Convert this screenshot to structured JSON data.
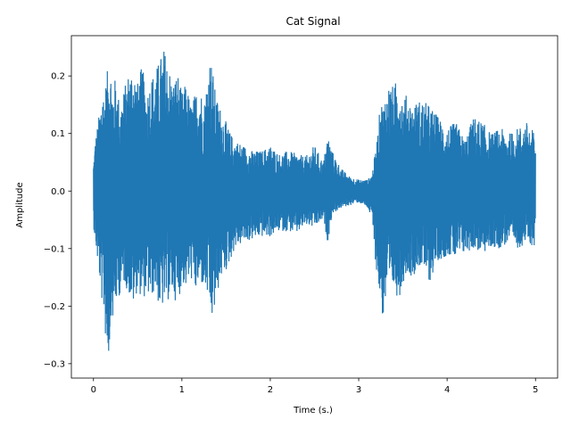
{
  "chart_data": {
    "type": "line",
    "title": "Cat Signal",
    "xlabel": "Time (s.)",
    "ylabel": "Amplitude",
    "xlim": [
      -0.25,
      5.25
    ],
    "ylim": [
      -0.325,
      0.27
    ],
    "x_ticks": [
      0,
      1,
      2,
      3,
      4,
      5
    ],
    "x_tick_labels": [
      "0",
      "1",
      "2",
      "3",
      "4",
      "5"
    ],
    "y_ticks": [
      -0.3,
      -0.2,
      -0.1,
      0.0,
      0.1,
      0.2
    ],
    "y_tick_labels": [
      "−0.3",
      "−0.2",
      "−0.1",
      "0.0",
      "0.1",
      "0.2"
    ],
    "grid": false,
    "series": [
      {
        "color": "#1f77b4",
        "envelope": {
          "t": [
            0.0,
            0.02,
            0.05,
            0.08,
            0.1,
            0.12,
            0.15,
            0.18,
            0.2,
            0.22,
            0.25,
            0.3,
            0.35,
            0.4,
            0.45,
            0.5,
            0.55,
            0.6,
            0.65,
            0.7,
            0.75,
            0.8,
            0.85,
            0.9,
            0.95,
            1.0,
            1.05,
            1.1,
            1.15,
            1.2,
            1.25,
            1.3,
            1.32,
            1.35,
            1.38,
            1.4,
            1.45,
            1.5,
            1.55,
            1.6,
            1.7,
            1.8,
            1.9,
            2.0,
            2.1,
            2.2,
            2.3,
            2.4,
            2.5,
            2.6,
            2.65,
            2.7,
            2.8,
            2.9,
            3.0,
            3.1,
            3.15,
            3.2,
            3.25,
            3.28,
            3.3,
            3.35,
            3.4,
            3.45,
            3.5,
            3.55,
            3.6,
            3.7,
            3.8,
            3.9,
            3.95,
            4.0,
            4.1,
            4.2,
            4.3,
            4.4,
            4.5,
            4.6,
            4.7,
            4.8,
            4.9,
            5.0
          ],
          "upper": [
            0.05,
            0.09,
            0.12,
            0.15,
            0.19,
            0.17,
            0.2,
            0.24,
            0.21,
            0.18,
            0.2,
            0.15,
            0.18,
            0.21,
            0.22,
            0.19,
            0.22,
            0.17,
            0.2,
            0.21,
            0.23,
            0.25,
            0.22,
            0.19,
            0.21,
            0.17,
            0.19,
            0.15,
            0.17,
            0.19,
            0.15,
            0.22,
            0.24,
            0.21,
            0.17,
            0.16,
            0.14,
            0.12,
            0.1,
            0.09,
            0.08,
            0.07,
            0.07,
            0.08,
            0.065,
            0.07,
            0.065,
            0.06,
            0.08,
            0.05,
            0.1,
            0.07,
            0.04,
            0.025,
            0.02,
            0.02,
            0.03,
            0.08,
            0.16,
            0.15,
            0.17,
            0.19,
            0.18,
            0.21,
            0.16,
            0.17,
            0.15,
            0.16,
            0.15,
            0.13,
            0.12,
            0.11,
            0.12,
            0.09,
            0.13,
            0.12,
            0.1,
            0.11,
            0.1,
            0.11,
            0.12,
            0.1
          ],
          "lower": [
            -0.06,
            -0.09,
            -0.13,
            -0.17,
            -0.2,
            -0.22,
            -0.29,
            -0.29,
            -0.21,
            -0.23,
            -0.2,
            -0.18,
            -0.16,
            -0.18,
            -0.2,
            -0.17,
            -0.19,
            -0.18,
            -0.19,
            -0.17,
            -0.21,
            -0.2,
            -0.19,
            -0.18,
            -0.2,
            -0.16,
            -0.17,
            -0.15,
            -0.18,
            -0.16,
            -0.17,
            -0.19,
            -0.22,
            -0.23,
            -0.2,
            -0.18,
            -0.15,
            -0.14,
            -0.12,
            -0.1,
            -0.09,
            -0.085,
            -0.08,
            -0.08,
            -0.07,
            -0.07,
            -0.075,
            -0.06,
            -0.065,
            -0.05,
            -0.09,
            -0.04,
            -0.03,
            -0.025,
            -0.02,
            -0.03,
            -0.05,
            -0.14,
            -0.2,
            -0.23,
            -0.2,
            -0.18,
            -0.17,
            -0.19,
            -0.16,
            -0.14,
            -0.15,
            -0.13,
            -0.16,
            -0.12,
            -0.12,
            -0.11,
            -0.12,
            -0.11,
            -0.1,
            -0.11,
            -0.1,
            -0.1,
            -0.09,
            -0.1,
            -0.09,
            -0.1
          ]
        }
      }
    ]
  }
}
